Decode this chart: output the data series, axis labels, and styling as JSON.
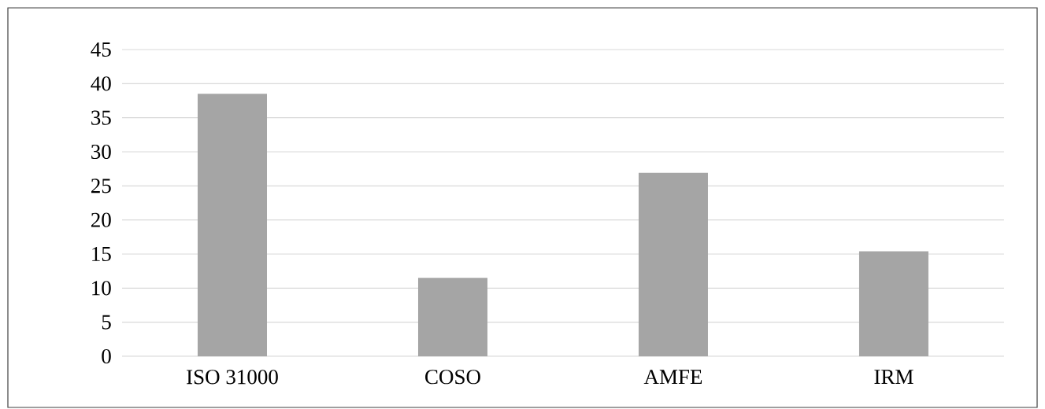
{
  "chart_data": {
    "type": "bar",
    "categories": [
      "ISO 31000",
      "COSO",
      "AMFE",
      "IRM"
    ],
    "values": [
      38.5,
      11.5,
      26.9,
      15.4
    ],
    "color": "#a5a5a5",
    "ylim": [
      0,
      45
    ],
    "yticks": [
      0,
      5,
      10,
      15,
      20,
      25,
      30,
      35,
      40,
      45
    ],
    "grid": "y"
  }
}
